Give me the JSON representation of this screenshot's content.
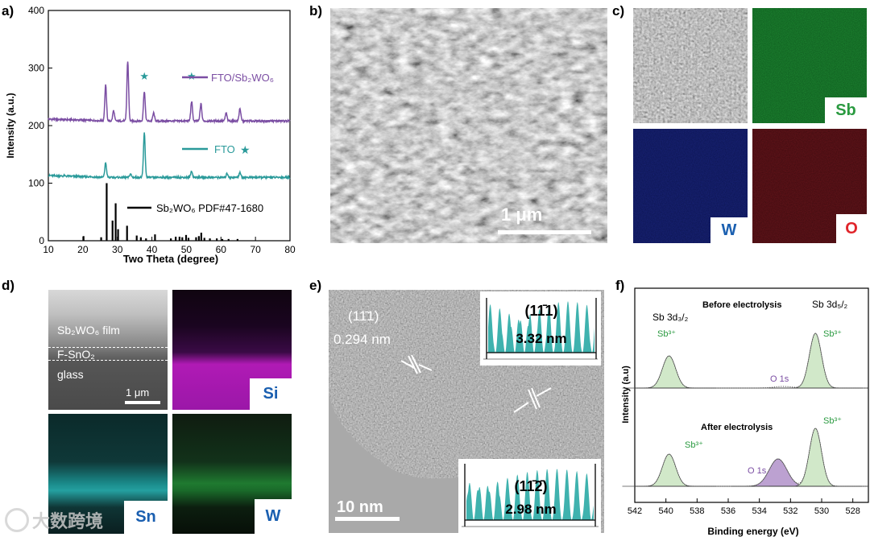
{
  "colors": {
    "purple": "#7b4ea3",
    "teal": "#2a9a9a",
    "ref": "#000000",
    "sb_green": "#2a9a40",
    "w_blue": "#1a5fb0",
    "o_red": "#e0242a",
    "si_blue": "#1a5fb0",
    "peak_green_fill": "#cfe7c7",
    "peak_purple_fill": "#b99ccf",
    "inset_teal": "#2aaaa5"
  },
  "panel_labels": [
    "a)",
    "b)",
    "c)",
    "d)",
    "e)",
    "f)"
  ],
  "panel_a": {
    "chart_data": {
      "type": "line",
      "xlabel": "Two Theta (degree)",
      "ylabel": "Intensity (a.u.)",
      "xlim": [
        10,
        80
      ],
      "ylim": [
        0,
        400
      ],
      "xticks": [
        "10",
        "20",
        "30",
        "40",
        "50",
        "60",
        "70",
        "80"
      ],
      "yticks": [
        "0",
        "100",
        "200",
        "300",
        "400"
      ],
      "legend": {
        "fto_sb2wo6": "FTO/Sb₂WO₆",
        "fto": "FTO",
        "ref": "Sb₂WO₆ PDF#47-1680",
        "star": "★"
      },
      "series": [
        {
          "name": "FTO/Sb₂WO₆",
          "baseline": 208,
          "peaks": [
            [
              26.6,
              62
            ],
            [
              28.9,
              18
            ],
            [
              33.0,
              104
            ],
            [
              37.8,
              52
            ],
            [
              40.5,
              14
            ],
            [
              51.5,
              34
            ],
            [
              54.2,
              30
            ],
            [
              61.5,
              14
            ],
            [
              65.5,
              22
            ]
          ]
        },
        {
          "name": "FTO",
          "baseline": 110,
          "peaks": [
            [
              26.6,
              25
            ],
            [
              33.8,
              6
            ],
            [
              37.8,
              77
            ],
            [
              51.5,
              11
            ],
            [
              61.8,
              7
            ],
            [
              65.5,
              9
            ]
          ]
        },
        {
          "name": "Sb₂WO₆ PDF#47-1680",
          "sticks": [
            [
              20.2,
              8
            ],
            [
              25.3,
              6
            ],
            [
              26.9,
              100
            ],
            [
              28.6,
              35
            ],
            [
              29.5,
              65
            ],
            [
              30.2,
              20
            ],
            [
              32.8,
              26
            ],
            [
              35.6,
              9
            ],
            [
              36.8,
              6
            ],
            [
              38.3,
              4
            ],
            [
              40.9,
              11
            ],
            [
              45.5,
              4
            ],
            [
              46.9,
              7
            ],
            [
              48.0,
              7
            ],
            [
              48.8,
              6
            ],
            [
              49.9,
              10
            ],
            [
              50.6,
              5
            ],
            [
              52.8,
              6
            ],
            [
              53.6,
              8
            ],
            [
              54.3,
              14
            ],
            [
              55.2,
              5
            ],
            [
              56.8,
              4
            ],
            [
              58.8,
              4
            ],
            [
              60.4,
              3
            ],
            [
              62.2,
              3
            ],
            [
              64.8,
              3
            ]
          ]
        }
      ],
      "stars_x": [
        37.8,
        51.5
      ]
    }
  },
  "panel_b": {
    "scale_bar": "1 μm"
  },
  "panel_c": {
    "tags": {
      "sb": "Sb",
      "w": "W",
      "o": "O"
    }
  },
  "panel_d": {
    "film": "Sb₂WO₆ film",
    "fto_layer": "F-SnO₂",
    "glass": "glass",
    "scale_bar": "1 μm",
    "tags": {
      "si": "Si",
      "sn": "Sn",
      "w": "W"
    }
  },
  "panel_e": {
    "plane1": "(11̄1)",
    "d1": "0.294 nm",
    "inset1_plane": "(11̄1)",
    "inset1_value": "3.32 nm",
    "inset2_plane": "(11̄2̄)",
    "inset2_value": "2.98 nm",
    "scale_bar": "10 nm"
  },
  "panel_f": {
    "chart_data": {
      "type": "line",
      "xlabel": "Binding energy (eV)",
      "ylabel": "Intensity (a.u)",
      "xlim": [
        542,
        527
      ],
      "xticks": [
        "542",
        "540",
        "538",
        "536",
        "534",
        "532",
        "530",
        "528"
      ],
      "annotations": {
        "sb3d32": "Sb 3d₃/₂",
        "sb3d52": "Sb 3d₅/₂",
        "before": "Before electrolysis",
        "after": "After electrolysis",
        "sb3plus": "Sb³⁺",
        "o1s": "O 1s"
      },
      "series": [
        {
          "name": "Before electrolysis",
          "peaks": [
            [
              539.8,
              1.0
            ],
            [
              532.5,
              0.05
            ],
            [
              530.4,
              1.7
            ]
          ]
        },
        {
          "name": "After electrolysis",
          "peaks": [
            [
              539.8,
              1.0
            ],
            [
              532.8,
              0.85
            ],
            [
              530.4,
              1.8
            ]
          ]
        }
      ]
    }
  },
  "watermark": "大数跨境"
}
